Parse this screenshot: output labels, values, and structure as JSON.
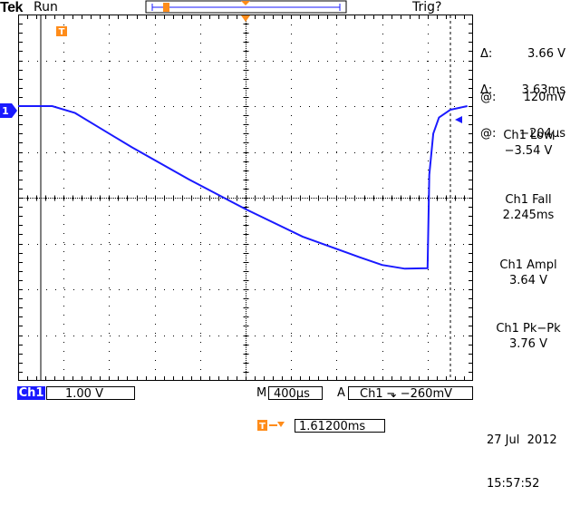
{
  "header": {
    "brand": "Tek",
    "state": "Run",
    "trigger_status": "Trig?"
  },
  "colors": {
    "trace": "#1a1aff",
    "marker": "#ff8c1a",
    "grid": "#000000",
    "background": "#ffffff"
  },
  "trace": {
    "channel_label": "1",
    "x_ms": [
      -2.06,
      -1.7,
      -1.5,
      -1.3,
      -1.0,
      -0.5,
      0.0,
      0.5,
      1.0,
      1.2,
      1.4,
      1.6,
      1.615,
      1.65,
      1.7,
      1.8,
      1.95
    ],
    "y_v": [
      0.0,
      0.0,
      -0.15,
      -0.45,
      -0.9,
      -1.6,
      -2.25,
      -2.85,
      -3.3,
      -3.47,
      -3.55,
      -3.54,
      -1.5,
      -0.6,
      -0.25,
      -0.08,
      0.0
    ]
  },
  "cursors": {
    "v_delta_symbol": "Δ:",
    "v_delta": "3.66 V",
    "v_at_symbol": "@:",
    "v_at": "120mV",
    "t_delta_symbol": "Δ:",
    "t_delta": "3.63ms",
    "t_at_symbol": "@:",
    "t_at": "−204µs"
  },
  "measurements": [
    {
      "label": "Ch1 Low",
      "value": "−3.54 V"
    },
    {
      "label": "Ch1 Fall",
      "value": "2.245ms"
    },
    {
      "label": "Ch1 Ampl",
      "value": "3.64 V"
    },
    {
      "label": "Ch1 Pk−Pk",
      "value": "3.76 V"
    }
  ],
  "footer": {
    "channel": "Ch1",
    "volts_div": "1.00 V",
    "time_prefix": "M",
    "time_div": "400µs",
    "acq_mode": "A",
    "trigger_source": "Ch1",
    "trigger_slope": "⬎",
    "trigger_level": "−260mV",
    "trigger_position": "1.61200ms",
    "date": "27 Jul  2012",
    "time": "15:57:52"
  },
  "markers": {
    "trigger_point": "T"
  }
}
